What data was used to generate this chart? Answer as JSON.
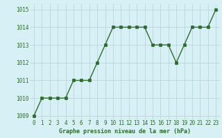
{
  "x": [
    0,
    1,
    2,
    3,
    4,
    5,
    6,
    7,
    8,
    9,
    10,
    11,
    12,
    13,
    14,
    15,
    16,
    17,
    18,
    19,
    20,
    21,
    22,
    23
  ],
  "y": [
    1009,
    1010,
    1010,
    1010,
    1010,
    1011,
    1011,
    1011,
    1012,
    1013,
    1014,
    1014,
    1014,
    1014,
    1014,
    1013,
    1013,
    1013,
    1012,
    1013,
    1014,
    1014,
    1014,
    1015
  ],
  "line_color": "#2d6a2d",
  "marker_color": "#2d6a2d",
  "bg_color": "#d6f0f5",
  "grid_color": "#c0d8dc",
  "xlabel": "Graphe pression niveau de la mer (hPa)",
  "xlabel_color": "#2d6a2d",
  "tick_label_color": "#2d6a2d",
  "ylim_min": 1008.8,
  "ylim_max": 1015.3,
  "yticks": [
    1009,
    1010,
    1011,
    1012,
    1013,
    1014,
    1015
  ],
  "xticks": [
    0,
    1,
    2,
    3,
    4,
    5,
    6,
    7,
    8,
    9,
    10,
    11,
    12,
    13,
    14,
    15,
    16,
    17,
    18,
    19,
    20,
    21,
    22,
    23
  ],
  "tick_fontsize": 5.5,
  "xlabel_fontsize": 6.0,
  "linewidth": 1.0,
  "markersize": 2.8
}
